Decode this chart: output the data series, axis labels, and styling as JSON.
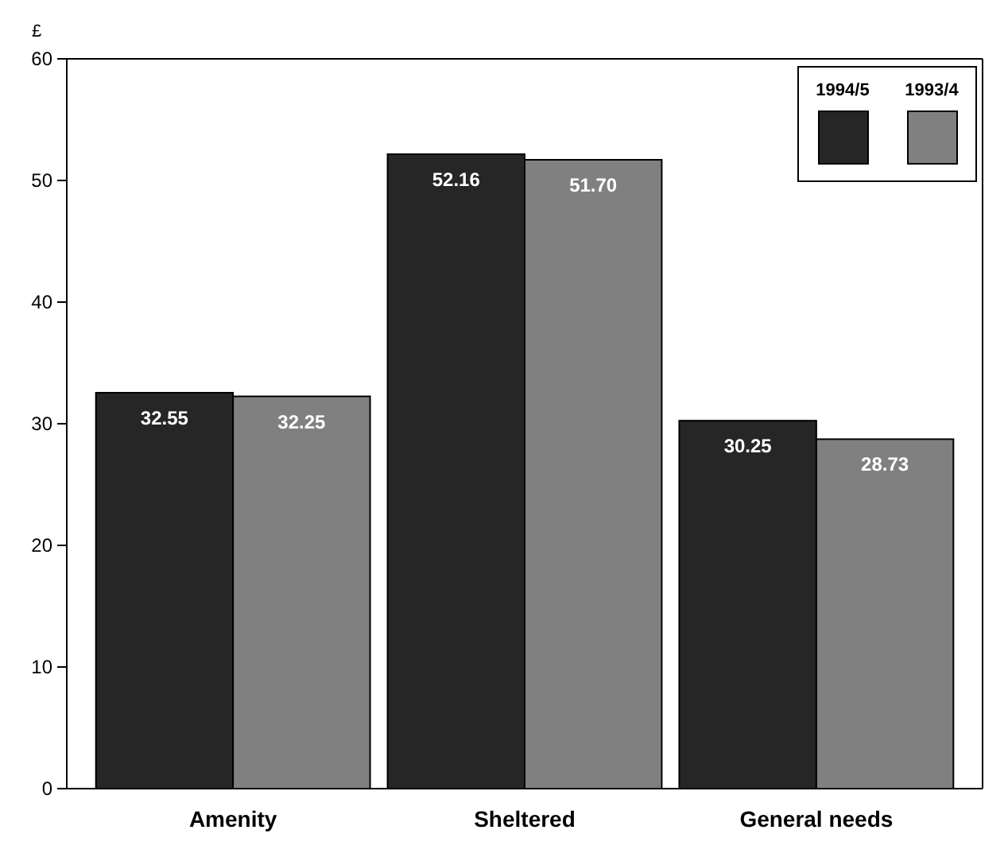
{
  "chart_data": {
    "type": "bar",
    "ylabel": "£",
    "categories": [
      "Amenity",
      "Sheltered",
      "General needs"
    ],
    "series": [
      {
        "name": "1994/5",
        "color": "#262626",
        "values": [
          32.55,
          52.16,
          30.25
        ],
        "value_labels": [
          "32.55",
          "52.16",
          "30.25"
        ]
      },
      {
        "name": "1993/4",
        "color": "#808080",
        "values": [
          32.25,
          51.7,
          28.73
        ],
        "value_labels": [
          "32.25",
          "51.70",
          "28.73"
        ]
      }
    ],
    "ylim": [
      0,
      60
    ],
    "yticks": [
      0,
      10,
      20,
      30,
      40,
      50,
      60
    ],
    "legend": "top right",
    "grid": false
  }
}
